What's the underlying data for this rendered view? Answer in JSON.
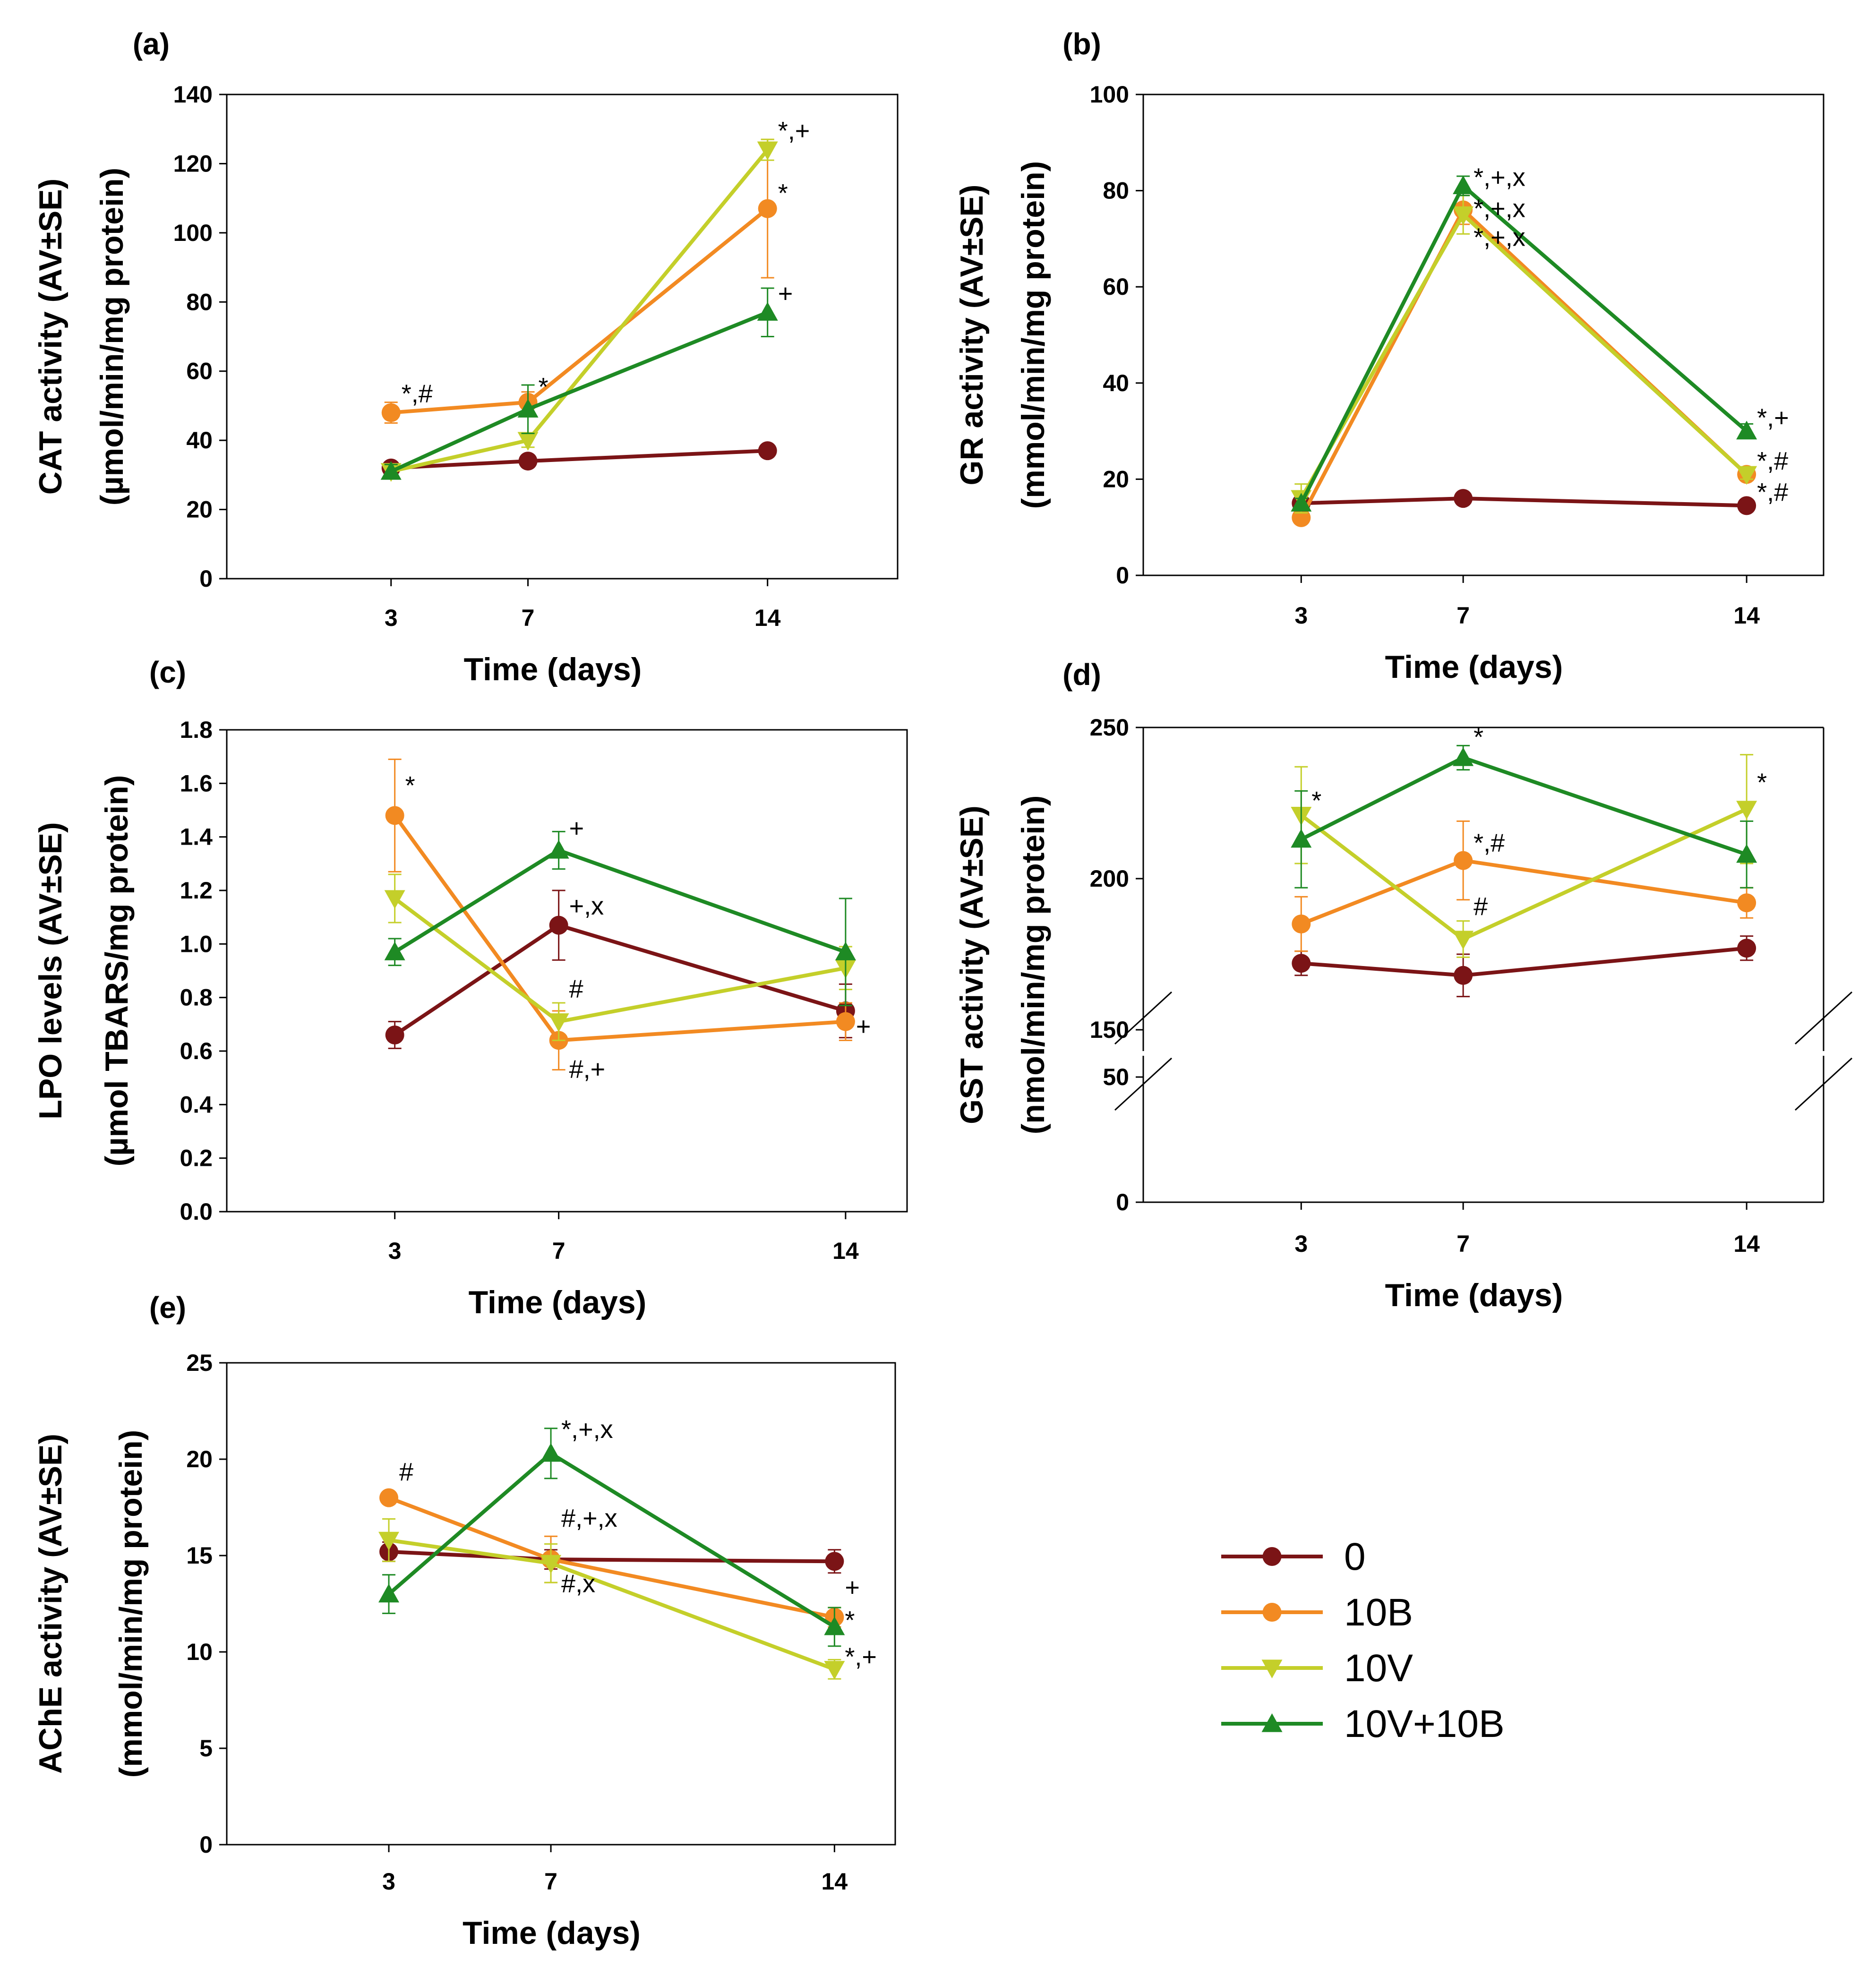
{
  "colors": {
    "0": "#7b1416",
    "10B": "#f28a22",
    "10V": "#c4cf2a",
    "10V+10B": "#1e8a24"
  },
  "legend": [
    {
      "name": "0",
      "marker": "circle"
    },
    {
      "name": "10B",
      "marker": "circle"
    },
    {
      "name": "10V",
      "marker": "tri-down"
    },
    {
      "name": "10V+10B",
      "marker": "tri-up"
    }
  ],
  "chart_data": [
    {
      "panel": "(a)",
      "type": "line",
      "xlabel": "Time (days)",
      "ylabel": [
        "CAT activity (AV±SE)",
        "(µmol/min/mg protein)"
      ],
      "x": [
        3,
        7,
        14
      ],
      "xlim": [
        -1.8,
        17.8
      ],
      "ylim": [
        0,
        140
      ],
      "yticks": [
        0,
        20,
        40,
        60,
        80,
        100,
        120,
        140
      ],
      "series": [
        {
          "name": "0",
          "values": [
            32,
            34,
            37
          ],
          "err": [
            1,
            1,
            1
          ]
        },
        {
          "name": "10B",
          "values": [
            48,
            51,
            107
          ],
          "err": [
            3,
            3,
            20
          ]
        },
        {
          "name": "10V",
          "values": [
            31,
            40,
            124
          ],
          "err": [
            1,
            2,
            3
          ]
        },
        {
          "name": "10V+10B",
          "values": [
            31,
            49,
            77
          ],
          "err": [
            2,
            7,
            7
          ]
        }
      ],
      "annotations": [
        {
          "text": "*,#",
          "x": 3,
          "y": 51
        },
        {
          "text": "*",
          "x": 7,
          "y": 53
        },
        {
          "text": "*,+",
          "x": 14,
          "y": 127
        },
        {
          "text": "*",
          "x": 14,
          "y": 109
        },
        {
          "text": "+",
          "x": 14,
          "y": 80
        }
      ]
    },
    {
      "panel": "(b)",
      "type": "line",
      "xlabel": "Time (days)",
      "ylabel": [
        "GR activity (AV±SE)",
        "(mmol/min/mg protein)"
      ],
      "x": [
        3,
        7,
        14
      ],
      "xlim": [
        -0.9,
        15.9
      ],
      "ylim": [
        0,
        100
      ],
      "yticks": [
        0,
        20,
        40,
        60,
        80,
        100
      ],
      "series": [
        {
          "name": "0",
          "values": [
            15,
            16,
            14.5
          ],
          "err": [
            1,
            1,
            1
          ]
        },
        {
          "name": "10B",
          "values": [
            12,
            76,
            21
          ],
          "err": [
            1,
            3,
            1
          ]
        },
        {
          "name": "10V",
          "values": [
            16,
            75,
            21
          ],
          "err": [
            3,
            4,
            1
          ]
        },
        {
          "name": "10V+10B",
          "values": [
            15,
            81,
            30
          ],
          "err": [
            1,
            2,
            1.5
          ]
        }
      ],
      "annotations": [
        {
          "text": "*,+,x",
          "x": 7,
          "y": 81
        },
        {
          "text": "*,+,x",
          "x": 7,
          "y": 74.5
        },
        {
          "text": "*,+,x",
          "x": 7,
          "y": 68.5
        },
        {
          "text": "*,+",
          "x": 14,
          "y": 31
        },
        {
          "text": "*,#",
          "x": 14,
          "y": 22
        },
        {
          "text": "*,#",
          "x": 14,
          "y": 15.5
        }
      ]
    },
    {
      "panel": "(c)",
      "type": "line",
      "xlabel": "Time (days)",
      "ylabel": [
        "LPO levels (AV±SE)",
        "(µmol TBARS/mg protein)"
      ],
      "x": [
        3,
        7,
        14
      ],
      "xlim": [
        -1.1,
        15.5
      ],
      "ylim": [
        0,
        1.8
      ],
      "yticks": [
        0.0,
        0.2,
        0.4,
        0.6,
        0.8,
        1.0,
        1.2,
        1.4,
        1.6,
        1.8
      ],
      "series": [
        {
          "name": "0",
          "values": [
            0.66,
            1.07,
            0.75
          ],
          "err": [
            0.05,
            0.13,
            0.1
          ]
        },
        {
          "name": "10B",
          "values": [
            1.48,
            0.64,
            0.71
          ],
          "err": [
            0.21,
            0.11,
            0.07
          ]
        },
        {
          "name": "10V",
          "values": [
            1.17,
            0.71,
            0.91
          ],
          "err": [
            0.09,
            0.07,
            0.08
          ]
        },
        {
          "name": "10V+10B",
          "values": [
            0.97,
            1.35,
            0.97
          ],
          "err": [
            0.05,
            0.07,
            0.2
          ]
        }
      ],
      "annotations": [
        {
          "text": "*",
          "x": 3,
          "y": 1.56
        },
        {
          "text": "+",
          "x": 7,
          "y": 1.4
        },
        {
          "text": "+,x",
          "x": 7,
          "y": 1.11
        },
        {
          "text": "#",
          "x": 7,
          "y": 0.8
        },
        {
          "text": "#,+",
          "x": 7,
          "y": 0.5
        },
        {
          "text": "+",
          "x": 14,
          "y": 0.66
        }
      ]
    },
    {
      "panel": "(d)",
      "type": "line",
      "xlabel": "Time (days)",
      "ylabel": [
        "GST activity (AV±SE)",
        "(nmol/min/mg protein)"
      ],
      "x": [
        3,
        7,
        14
      ],
      "xlim": [
        -0.9,
        15.9
      ],
      "broken_axis": true,
      "ylim_lower": [
        0,
        50
      ],
      "ylim_upper": [
        150,
        250
      ],
      "yticks": [
        0,
        50,
        150,
        200,
        250
      ],
      "series": [
        {
          "name": "0",
          "values": [
            172,
            168,
            177
          ],
          "err": [
            4,
            7,
            4
          ]
        },
        {
          "name": "10B",
          "values": [
            185,
            206,
            192
          ],
          "err": [
            9,
            13,
            5
          ]
        },
        {
          "name": "10V",
          "values": [
            221,
            180,
            223
          ],
          "err": [
            16,
            6,
            18
          ]
        },
        {
          "name": "10V+10B",
          "values": [
            213,
            240,
            208
          ],
          "err": [
            16,
            4,
            11
          ]
        }
      ],
      "annotations": [
        {
          "text": "*",
          "x": 3,
          "y": 223
        },
        {
          "text": "*",
          "x": 7,
          "y": 244
        },
        {
          "text": "*,#",
          "x": 7,
          "y": 209
        },
        {
          "text": "#",
          "x": 7,
          "y": 188
        },
        {
          "text": "*",
          "x": 14,
          "y": 229
        }
      ]
    },
    {
      "panel": "(e)",
      "type": "line",
      "xlabel": "Time (days)",
      "ylabel": [
        "AChE activity (AV±SE)",
        "(mmol/min/mg protein)"
      ],
      "x": [
        3,
        7,
        14
      ],
      "xlim": [
        -1.0,
        15.5
      ],
      "ylim": [
        0,
        25
      ],
      "yticks": [
        0,
        5,
        10,
        15,
        20,
        25
      ],
      "series": [
        {
          "name": "0",
          "values": [
            15.2,
            14.8,
            14.7
          ],
          "err": [
            0.5,
            0.5,
            0.6
          ]
        },
        {
          "name": "10B",
          "values": [
            18.0,
            14.8,
            11.8
          ],
          "err": [
            0.3,
            1.2,
            0.5
          ]
        },
        {
          "name": "10V",
          "values": [
            15.8,
            14.6,
            9.1
          ],
          "err": [
            1.1,
            1.0,
            0.5
          ]
        },
        {
          "name": "10V+10B",
          "values": [
            13.0,
            20.3,
            11.3
          ],
          "err": [
            1.0,
            1.3,
            1.0
          ]
        }
      ],
      "annotations": [
        {
          "text": "#",
          "x": 3,
          "y": 18.9
        },
        {
          "text": "*,+,x",
          "x": 7,
          "y": 21.1
        },
        {
          "text": "#,+,x",
          "x": 7,
          "y": 16.5
        },
        {
          "text": "#,x",
          "x": 7,
          "y": 13.1
        },
        {
          "text": "+",
          "x": 14,
          "y": 12.9
        },
        {
          "text": "*",
          "x": 14,
          "y": 11.2
        },
        {
          "text": "*,+",
          "x": 14,
          "y": 9.3
        }
      ]
    }
  ]
}
